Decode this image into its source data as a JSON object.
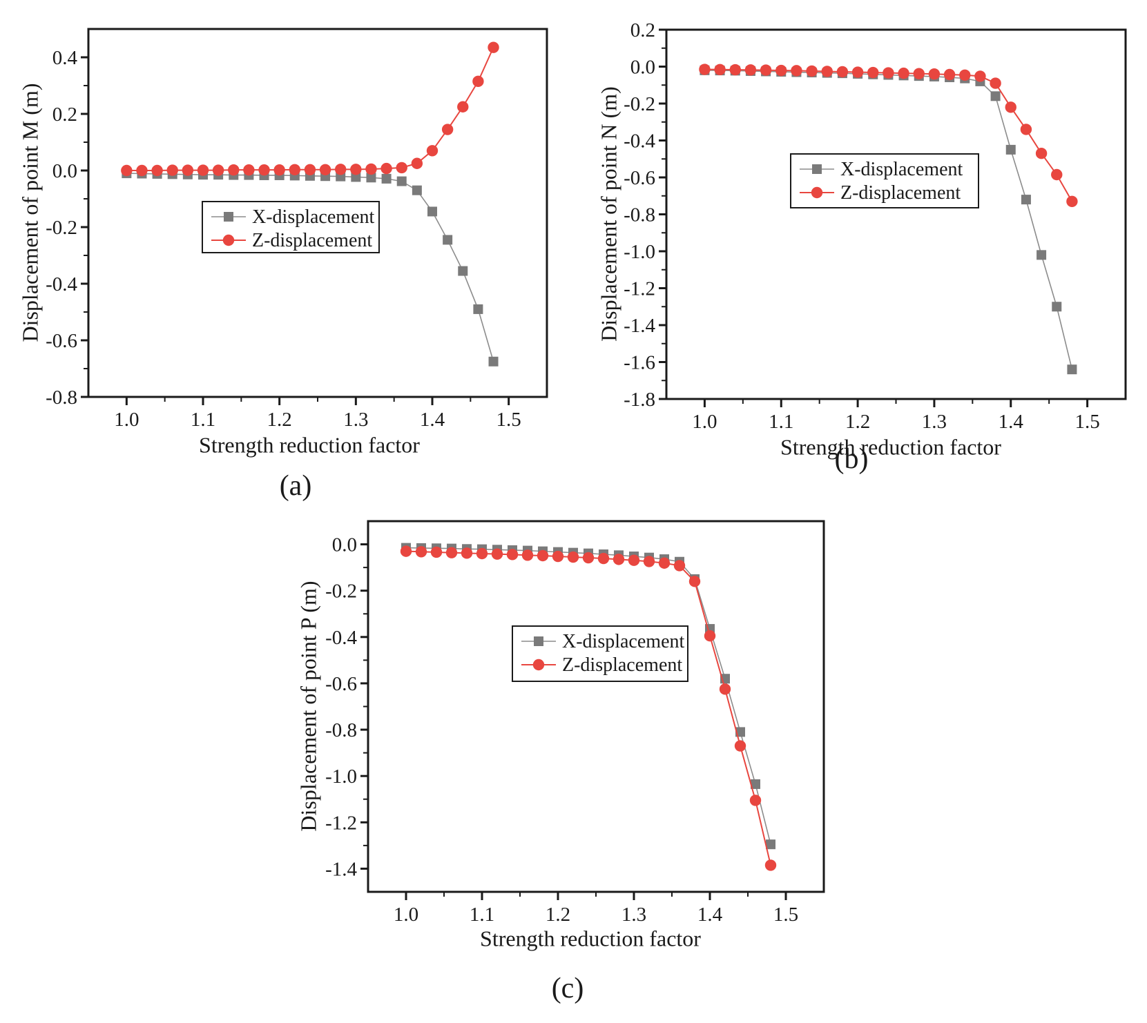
{
  "colors": {
    "frame": "#1a1a1a",
    "x_marker": "#7a7a7a",
    "x_line": "#8c8c8c",
    "z_marker": "#e8463f",
    "z_line": "#e8463f",
    "background": "#ffffff"
  },
  "chart_data": [
    {
      "id": "a",
      "type": "line",
      "caption": "(a)",
      "title": "",
      "xlabel": "Strength reduction factor",
      "ylabel": "Displacement of point M (m)",
      "xlim": [
        0.95,
        1.55
      ],
      "ylim": [
        -0.8,
        0.5
      ],
      "grid": false,
      "legend_position": "inside-center-left",
      "xticks": [
        1.0,
        1.1,
        1.2,
        1.3,
        1.4,
        1.5
      ],
      "xtick_labels": [
        "1.0",
        "1.1",
        "1.2",
        "1.3",
        "1.4",
        "1.5"
      ],
      "yticks": [
        0.4,
        0.2,
        0.0,
        -0.2,
        -0.4,
        -0.6,
        -0.8
      ],
      "ytick_labels": [
        "0.4",
        "0.2",
        "0.0",
        "-0.2",
        "-0.4",
        "-0.6",
        "-0.8"
      ],
      "x": [
        1.0,
        1.02,
        1.04,
        1.06,
        1.08,
        1.1,
        1.12,
        1.14,
        1.16,
        1.18,
        1.2,
        1.22,
        1.24,
        1.26,
        1.28,
        1.3,
        1.32,
        1.34,
        1.36,
        1.38,
        1.4,
        1.42,
        1.44,
        1.46,
        1.48
      ],
      "series": [
        {
          "name": "X-displacement",
          "marker": "square",
          "marker_color": "#7a7a7a",
          "line_color": "#8c8c8c",
          "values": [
            -0.01,
            -0.011,
            -0.012,
            -0.013,
            -0.014,
            -0.015,
            -0.015,
            -0.016,
            -0.016,
            -0.017,
            -0.017,
            -0.018,
            -0.019,
            -0.02,
            -0.021,
            -0.023,
            -0.025,
            -0.029,
            -0.038,
            -0.07,
            -0.145,
            -0.245,
            -0.355,
            -0.49,
            -0.675
          ]
        },
        {
          "name": "Z-displacement",
          "marker": "circle",
          "marker_color": "#e8463f",
          "line_color": "#e8463f",
          "values": [
            0.0,
            0.0,
            0.0,
            0.001,
            0.001,
            0.001,
            0.001,
            0.002,
            0.002,
            0.002,
            0.002,
            0.003,
            0.003,
            0.003,
            0.004,
            0.004,
            0.005,
            0.007,
            0.01,
            0.025,
            0.07,
            0.145,
            0.225,
            0.315,
            0.435
          ]
        }
      ]
    },
    {
      "id": "b",
      "type": "line",
      "caption": "(b)",
      "title": "",
      "xlabel": "Strength reduction factor",
      "ylabel": "Displacement of point N (m)",
      "xlim": [
        0.95,
        1.55
      ],
      "ylim": [
        -1.8,
        0.2
      ],
      "grid": false,
      "legend_position": "inside-center-left",
      "xticks": [
        1.0,
        1.1,
        1.2,
        1.3,
        1.4,
        1.5
      ],
      "xtick_labels": [
        "1.0",
        "1.1",
        "1.2",
        "1.3",
        "1.4",
        "1.5"
      ],
      "yticks": [
        0.2,
        0.0,
        -0.2,
        -0.4,
        -0.6,
        -0.8,
        -1.0,
        -1.2,
        -1.4,
        -1.6,
        -1.8
      ],
      "ytick_labels": [
        "0.2",
        "0.0",
        "-0.2",
        "-0.4",
        "-0.6",
        "-0.8",
        "-1.0",
        "-1.2",
        "-1.4",
        "-1.6",
        "-1.8"
      ],
      "x": [
        1.0,
        1.02,
        1.04,
        1.06,
        1.08,
        1.1,
        1.12,
        1.14,
        1.16,
        1.18,
        1.2,
        1.22,
        1.24,
        1.26,
        1.28,
        1.3,
        1.32,
        1.34,
        1.36,
        1.38,
        1.4,
        1.42,
        1.44,
        1.46,
        1.48
      ],
      "series": [
        {
          "name": "X-displacement",
          "marker": "square",
          "marker_color": "#7a7a7a",
          "line_color": "#8c8c8c",
          "values": [
            -0.02,
            -0.021,
            -0.022,
            -0.024,
            -0.026,
            -0.028,
            -0.03,
            -0.032,
            -0.034,
            -0.036,
            -0.039,
            -0.042,
            -0.045,
            -0.048,
            -0.051,
            -0.054,
            -0.058,
            -0.064,
            -0.08,
            -0.16,
            -0.45,
            -0.72,
            -1.02,
            -1.3,
            -1.64
          ]
        },
        {
          "name": "Z-displacement",
          "marker": "circle",
          "marker_color": "#e8463f",
          "line_color": "#e8463f",
          "values": [
            -0.015,
            -0.016,
            -0.017,
            -0.018,
            -0.019,
            -0.021,
            -0.022,
            -0.024,
            -0.026,
            -0.028,
            -0.03,
            -0.032,
            -0.034,
            -0.036,
            -0.038,
            -0.04,
            -0.043,
            -0.046,
            -0.052,
            -0.09,
            -0.22,
            -0.34,
            -0.47,
            -0.585,
            -0.73
          ]
        }
      ]
    },
    {
      "id": "c",
      "type": "line",
      "caption": "(c)",
      "title": "",
      "xlabel": "Strength reduction factor",
      "ylabel": "Displacement of point P (m)",
      "xlim": [
        0.95,
        1.55
      ],
      "ylim": [
        -1.5,
        0.1
      ],
      "grid": false,
      "legend_position": "inside-center",
      "xticks": [
        1.0,
        1.1,
        1.2,
        1.3,
        1.4,
        1.5
      ],
      "xtick_labels": [
        "1.0",
        "1.1",
        "1.2",
        "1.3",
        "1.4",
        "1.5"
      ],
      "yticks": [
        0.0,
        -0.2,
        -0.4,
        -0.6,
        -0.8,
        -1.0,
        -1.2,
        -1.4
      ],
      "ytick_labels": [
        "0.0",
        "-0.2",
        "-0.4",
        "-0.6",
        "-0.8",
        "-1.0",
        "-1.2",
        "-1.4"
      ],
      "x": [
        1.0,
        1.02,
        1.04,
        1.06,
        1.08,
        1.1,
        1.12,
        1.14,
        1.16,
        1.18,
        1.2,
        1.22,
        1.24,
        1.26,
        1.28,
        1.3,
        1.32,
        1.34,
        1.36,
        1.38,
        1.4,
        1.42,
        1.44,
        1.46,
        1.48
      ],
      "series": [
        {
          "name": "X-displacement",
          "marker": "square",
          "marker_color": "#7a7a7a",
          "line_color": "#8c8c8c",
          "values": [
            -0.015,
            -0.016,
            -0.017,
            -0.018,
            -0.02,
            -0.021,
            -0.023,
            -0.025,
            -0.027,
            -0.03,
            -0.033,
            -0.036,
            -0.039,
            -0.043,
            -0.047,
            -0.052,
            -0.057,
            -0.064,
            -0.075,
            -0.15,
            -0.365,
            -0.58,
            -0.81,
            -1.035,
            -1.295
          ]
        },
        {
          "name": "Z-displacement",
          "marker": "circle",
          "marker_color": "#e8463f",
          "line_color": "#e8463f",
          "values": [
            -0.03,
            -0.032,
            -0.034,
            -0.036,
            -0.038,
            -0.04,
            -0.042,
            -0.044,
            -0.047,
            -0.049,
            -0.052,
            -0.055,
            -0.058,
            -0.061,
            -0.065,
            -0.069,
            -0.074,
            -0.081,
            -0.092,
            -0.16,
            -0.395,
            -0.625,
            -0.87,
            -1.105,
            -1.385
          ]
        }
      ]
    }
  ]
}
